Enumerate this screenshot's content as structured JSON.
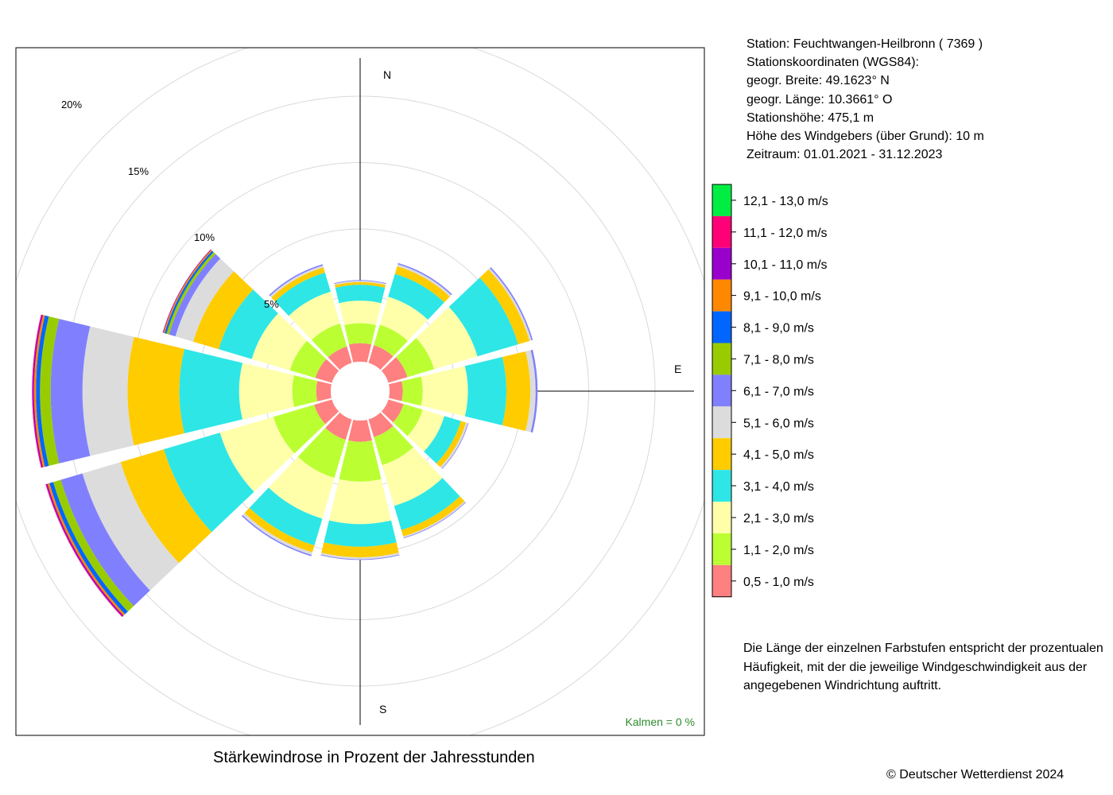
{
  "info": {
    "station": "Station:  Feuchtwangen-Heilbronn  ( 7369 )",
    "coords_heading": "Stationskoordinaten (WGS84):",
    "latitude": "geogr. Breite: 49.1623° N",
    "longitude": "geogr. Länge: 10.3661° O",
    "elevation": "Stationshöhe: 475,1 m",
    "sensor_height": "Höhe des Windgebers (über Grund): 10 m",
    "period": "Zeitraum: 01.01.2021 - 31.12.2023"
  },
  "note": {
    "line1": "Die Länge der einzelnen Farbstufen entspricht der prozentualen",
    "line2": "Häufigkeit, mit der die jeweilige Windgeschwindigkeit aus der",
    "line3": "angegebenen Windrichtung auftritt."
  },
  "caption": "Stärkewindrose in Prozent der Jahresstunden",
  "copyright": "© Deutscher Wetterdienst  2024",
  "chart_data": {
    "type": "wind-rose",
    "title": "Stärkewindrose in Prozent der Jahresstunden",
    "calm": "Kalmen  =  0 %",
    "compass": {
      "N": "N",
      "E": "E",
      "S": "S"
    },
    "ring_labels": [
      "5%",
      "10%",
      "15%",
      "20%"
    ],
    "rings": [
      5,
      10,
      15,
      20,
      25
    ],
    "directions_deg": [
      0,
      30,
      60,
      90,
      120,
      150,
      180,
      210,
      240,
      270,
      300,
      330
    ],
    "speed_classes": [
      {
        "label": "0,5 - 1,0 m/s",
        "color": "#FF8080"
      },
      {
        "label": "1,1 - 2,0 m/s",
        "color": "#BBFF33"
      },
      {
        "label": "2,1 - 3,0 m/s",
        "color": "#FFFFAA"
      },
      {
        "label": "3,1 - 4,0 m/s",
        "color": "#2EE6E6"
      },
      {
        "label": "4,1 - 5,0 m/s",
        "color": "#FFCC00"
      },
      {
        "label": "5,1 - 6,0 m/s",
        "color": "#DCDCDC"
      },
      {
        "label": "6,1 - 7,0 m/s",
        "color": "#8080FF"
      },
      {
        "label": "7,1 - 8,0 m/s",
        "color": "#99CC00"
      },
      {
        "label": "8,1 - 9,0 m/s",
        "color": "#0066FF"
      },
      {
        "label": "9,1 - 10,0 m/s",
        "color": "#FF8800"
      },
      {
        "label": "10,1 - 11,0 m/s",
        "color": "#9900CC"
      },
      {
        "label": "11,1 - 12,0 m/s",
        "color": "#FF0077"
      },
      {
        "label": "12,1 - 13,0 m/s",
        "color": "#00EE44"
      }
    ],
    "series": [
      {
        "direction_deg": 0,
        "values": [
          1.4,
          1.5,
          1.7,
          1.2,
          0.2,
          0.1,
          0.05,
          0,
          0,
          0,
          0,
          0,
          0
        ]
      },
      {
        "direction_deg": 30,
        "values": [
          1.4,
          1.6,
          2.2,
          1.8,
          0.6,
          0.15,
          0.1,
          0,
          0,
          0,
          0,
          0,
          0
        ]
      },
      {
        "direction_deg": 60,
        "values": [
          1.5,
          2.1,
          3.4,
          3.2,
          0.9,
          0.15,
          0.1,
          0,
          0,
          0,
          0,
          0,
          0
        ]
      },
      {
        "direction_deg": 90,
        "values": [
          1.0,
          1.5,
          3.4,
          2.9,
          1.8,
          0.4,
          0.15,
          0,
          0,
          0,
          0,
          0,
          0
        ]
      },
      {
        "direction_deg": 120,
        "values": [
          1.2,
          1.5,
          1.7,
          1.3,
          0.4,
          0.15,
          0.05,
          0,
          0,
          0,
          0,
          0,
          0
        ]
      },
      {
        "direction_deg": 150,
        "values": [
          1.4,
          2.2,
          3.2,
          1.9,
          0.5,
          0.1,
          0.05,
          0,
          0,
          0,
          0,
          0,
          0
        ]
      },
      {
        "direction_deg": 180,
        "values": [
          1.6,
          3.0,
          3.2,
          1.7,
          0.8,
          0.15,
          0.05,
          0,
          0,
          0,
          0,
          0,
          0
        ]
      },
      {
        "direction_deg": 210,
        "values": [
          1.6,
          3.0,
          3.2,
          2.1,
          0.55,
          0.2,
          0.1,
          0,
          0,
          0,
          0,
          0,
          0
        ]
      },
      {
        "direction_deg": 240,
        "values": [
          1.4,
          3.2,
          4.2,
          4.4,
          3.4,
          3.0,
          1.7,
          0.6,
          0.3,
          0.15,
          0.1,
          0.05,
          0
        ]
      },
      {
        "direction_deg": 270,
        "values": [
          1.1,
          1.8,
          4.0,
          4.5,
          3.9,
          3.4,
          2.4,
          0.8,
          0.3,
          0.15,
          0.1,
          0.05,
          0
        ]
      },
      {
        "direction_deg": 300,
        "values": [
          1.3,
          2.0,
          3.0,
          2.6,
          2.0,
          1.4,
          0.5,
          0.2,
          0.15,
          0.1,
          0.05,
          0,
          0
        ]
      },
      {
        "direction_deg": 330,
        "values": [
          1.3,
          1.8,
          2.5,
          1.5,
          0.4,
          0.15,
          0.1,
          0,
          0,
          0,
          0,
          0,
          0
        ]
      }
    ]
  }
}
